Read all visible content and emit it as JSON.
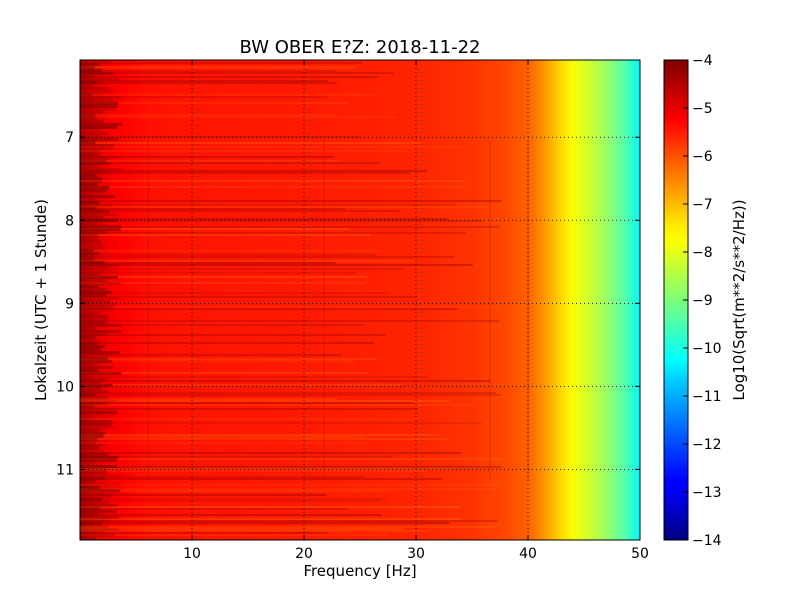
{
  "chart_data": {
    "type": "heatmap",
    "title": "BW OBER E?Z: 2018-11-22",
    "xlabel": "Frequency [Hz]",
    "ylabel": "Lokalzeit (UTC + 1 Stunde)",
    "colorbar_label": "Log10(Sqrt(m**2/s**2/Hz))",
    "xlim": [
      0,
      50
    ],
    "ylim": [
      11.85,
      6.07
    ],
    "x_ticks": [
      10,
      20,
      30,
      40,
      50
    ],
    "x_tick_labels": [
      "10",
      "20",
      "30",
      "40",
      "50"
    ],
    "y_ticks": [
      7,
      8,
      9,
      10,
      11
    ],
    "y_tick_labels": [
      "7",
      "8",
      "9",
      "10",
      "11"
    ],
    "clim": [
      -14,
      -4
    ],
    "colorbar_ticks": [
      -4,
      -5,
      -6,
      -7,
      -8,
      -9,
      -10,
      -11,
      -12,
      -13,
      -14
    ],
    "colorbar_tick_labels": [
      "−4",
      "−5",
      "−6",
      "−7",
      "−8",
      "−9",
      "−10",
      "−11",
      "−12",
      "−13",
      "−14"
    ],
    "colormap": "jet",
    "grid": true,
    "value_profile": {
      "frequency_hz": [
        0,
        1,
        3,
        6,
        10,
        20,
        30,
        35,
        38,
        40,
        41,
        42,
        43,
        44,
        45,
        46,
        47,
        48,
        49,
        50
      ],
      "log10_amplitude": [
        -4.6,
        -4.9,
        -5.2,
        -5.4,
        -5.45,
        -5.5,
        -5.6,
        -5.75,
        -5.95,
        -6.2,
        -6.55,
        -6.95,
        -7.4,
        -7.8,
        -8.1,
        -8.4,
        -8.75,
        -9.15,
        -9.6,
        -10.3
      ]
    }
  }
}
